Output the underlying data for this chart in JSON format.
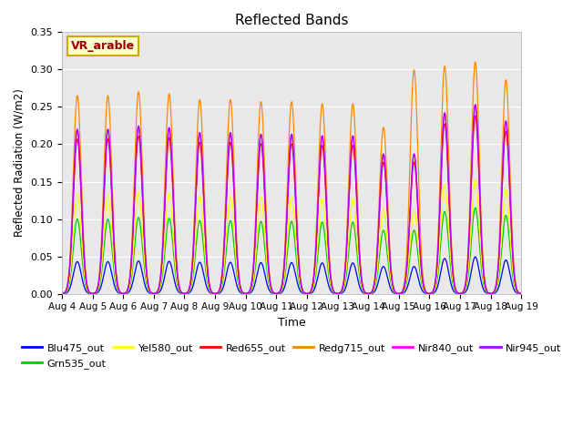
{
  "title": "Reflected Bands",
  "xlabel": "Time",
  "ylabel": "Reflected Radiation (W/m2)",
  "annotation": "VR_arable",
  "ylim": [
    0,
    0.35
  ],
  "yticks": [
    0.0,
    0.05,
    0.1,
    0.15,
    0.2,
    0.25,
    0.3,
    0.35
  ],
  "background_color": "#e8e8e8",
  "series": [
    {
      "name": "Blu475_out",
      "color": "#0000ff",
      "peak": 0.043
    },
    {
      "name": "Grn535_out",
      "color": "#00cc00",
      "peak": 0.1
    },
    {
      "name": "Yel580_out",
      "color": "#ffff00",
      "peak": 0.133
    },
    {
      "name": "Red655_out",
      "color": "#ff0000",
      "peak": 0.207
    },
    {
      "name": "Redg715_out",
      "color": "#ff8800",
      "peak": 0.265
    },
    {
      "name": "Nir840_out",
      "color": "#ff00ff",
      "peak": 0.22
    },
    {
      "name": "Nir945_out",
      "color": "#aa00ff",
      "peak": 0.22
    }
  ],
  "n_days": 15,
  "xtick_labels": [
    "Aug 4",
    "Aug 5",
    "Aug 6",
    "Aug 7",
    "Aug 8",
    "Aug 9",
    "Aug 10",
    "Aug 11",
    "Aug 12",
    "Aug 13",
    "Aug 14",
    "Aug 15",
    "Aug 16",
    "Aug 17",
    "Aug 18",
    "Aug 19"
  ],
  "day_multipliers": [
    1.0,
    1.0,
    1.02,
    1.01,
    0.98,
    0.98,
    0.97,
    0.97,
    0.96,
    0.96,
    0.85,
    0.85,
    1.1,
    1.15,
    1.05
  ],
  "redg_multipliers": [
    1.0,
    1.0,
    1.02,
    1.01,
    0.98,
    0.98,
    0.97,
    0.97,
    0.96,
    0.96,
    0.84,
    1.13,
    1.15,
    1.17,
    1.08
  ],
  "nir_multipliers": [
    1.0,
    1.0,
    1.02,
    1.01,
    0.98,
    0.98,
    0.97,
    0.97,
    0.96,
    0.96,
    0.85,
    0.85,
    1.1,
    1.15,
    1.05
  ],
  "sigma": 0.13,
  "legend_ncol": 6
}
